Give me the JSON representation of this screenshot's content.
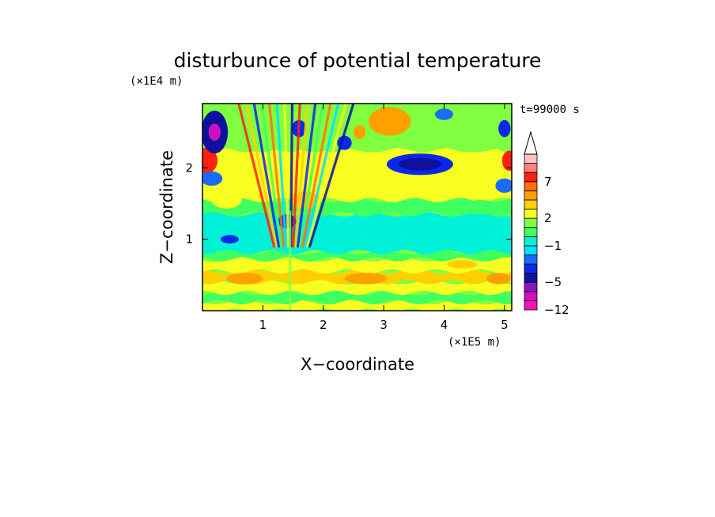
{
  "chart_data": {
    "type": "heatmap",
    "title": "disturbunce of potential temperature",
    "xlabel": "X−coordinate",
    "ylabel": "Z−coordinate",
    "x_units": "(×1E5 m)",
    "y_units": "(×1E4 m)",
    "time_label": "t=99000 s",
    "xlim": [
      0,
      5.12
    ],
    "ylim": [
      0,
      2.9
    ],
    "x_ticks": [
      "1",
      "2",
      "3",
      "4",
      "5"
    ],
    "x_tick_values": [
      1,
      2,
      3,
      4,
      5
    ],
    "y_ticks": [
      "1",
      "2"
    ],
    "y_tick_values": [
      1,
      2
    ],
    "colorbar": {
      "levels": [
        -12,
        -10,
        -7,
        -5,
        -4,
        -3,
        -2,
        -1,
        0,
        1,
        2,
        3,
        4,
        5,
        7,
        9,
        11,
        13
      ],
      "colors": [
        "#ff10b8",
        "#d010c0",
        "#8a14c0",
        "#1010a0",
        "#0a28e8",
        "#1a6bff",
        "#00e0ff",
        "#00f0d8",
        "#40ff60",
        "#80ff40",
        "#f8ff20",
        "#ffd000",
        "#ffa000",
        "#ff7010",
        "#ff2010",
        "#f88080",
        "#ffc0c0"
      ],
      "labels": [
        "7",
        "2",
        "−1",
        "−5",
        "−12"
      ],
      "label_values": [
        7,
        2,
        -1,
        -5,
        -12
      ],
      "extend": "max"
    },
    "layers": [
      {
        "name": "base",
        "value": 1.5
      },
      {
        "name": "band-surface",
        "y0": 0.0,
        "y1": 0.12,
        "value": 2.5
      },
      {
        "name": "band-low-green",
        "y0": 0.12,
        "y1": 0.25,
        "value": 0.5
      },
      {
        "name": "band-low-yellow",
        "y0": 0.25,
        "y1": 0.4,
        "value": 2.5
      },
      {
        "name": "band-low-orange",
        "y0": 0.4,
        "y1": 0.55,
        "value": 3.5
      },
      {
        "name": "band-yellow",
        "y0": 0.55,
        "y1": 0.72,
        "value": 2.5
      },
      {
        "name": "band-green",
        "y0": 0.72,
        "y1": 0.82,
        "value": 0.5
      },
      {
        "name": "band-cyan",
        "y0": 0.82,
        "y1": 1.35,
        "value": -0.5
      },
      {
        "name": "band-green-upper",
        "y0": 1.35,
        "y1": 1.55,
        "value": 0.5
      },
      {
        "name": "band-yellow-upper",
        "y0": 1.55,
        "y1": 2.25,
        "value": 2.5
      },
      {
        "name": "band-top",
        "y0": 2.25,
        "y1": 2.9,
        "value": 1.5
      }
    ],
    "blobs": [
      {
        "x": 0.05,
        "y": 2.1,
        "rx": 0.2,
        "ry": 0.18,
        "value": 8
      },
      {
        "x": 0.2,
        "y": 2.5,
        "rx": 0.22,
        "ry": 0.3,
        "value": -4.5
      },
      {
        "x": 0.2,
        "y": 2.5,
        "rx": 0.1,
        "ry": 0.12,
        "value": -8
      },
      {
        "x": 0.15,
        "y": 1.85,
        "rx": 0.18,
        "ry": 0.1,
        "value": -2.5
      },
      {
        "x": 3.6,
        "y": 2.05,
        "rx": 0.55,
        "ry": 0.15,
        "value": -3.5
      },
      {
        "x": 3.6,
        "y": 2.05,
        "rx": 0.35,
        "ry": 0.09,
        "value": -4.5
      },
      {
        "x": 3.1,
        "y": 2.65,
        "rx": 0.35,
        "ry": 0.2,
        "value": 4.5
      },
      {
        "x": 5.08,
        "y": 2.1,
        "rx": 0.12,
        "ry": 0.14,
        "value": 8
      },
      {
        "x": 5.0,
        "y": 1.75,
        "rx": 0.15,
        "ry": 0.1,
        "value": -2.5
      },
      {
        "x": 5.0,
        "y": 2.55,
        "rx": 0.1,
        "ry": 0.12,
        "value": -3.5
      },
      {
        "x": 4.0,
        "y": 2.75,
        "rx": 0.15,
        "ry": 0.08,
        "value": -2.5
      },
      {
        "x": 1.6,
        "y": 2.55,
        "rx": 0.12,
        "ry": 0.12,
        "value": -3.5
      },
      {
        "x": 2.35,
        "y": 2.35,
        "rx": 0.12,
        "ry": 0.1,
        "value": -3.5
      },
      {
        "x": 2.6,
        "y": 2.5,
        "rx": 0.1,
        "ry": 0.1,
        "value": 4.5
      },
      {
        "x": 1.4,
        "y": 1.25,
        "rx": 0.15,
        "ry": 0.1,
        "value": -3.5
      },
      {
        "x": 0.45,
        "y": 1.0,
        "rx": 0.15,
        "ry": 0.06,
        "value": -3.5
      },
      {
        "x": 4.6,
        "y": 1.45,
        "rx": 0.3,
        "ry": 0.1,
        "value": 0.5
      },
      {
        "x": 1.7,
        "y": 1.55,
        "rx": 0.25,
        "ry": 0.12,
        "value": 3.5
      },
      {
        "x": 2.7,
        "y": 0.45,
        "rx": 0.35,
        "ry": 0.08,
        "value": 4.5
      },
      {
        "x": 0.7,
        "y": 0.45,
        "rx": 0.3,
        "ry": 0.08,
        "value": 4.5
      },
      {
        "x": 4.9,
        "y": 0.45,
        "rx": 0.2,
        "ry": 0.08,
        "value": 4.5
      },
      {
        "x": 4.3,
        "y": 0.65,
        "rx": 0.25,
        "ry": 0.06,
        "value": 3.5
      },
      {
        "x": 2.1,
        "y": 1.1,
        "rx": 0.2,
        "ry": 0.06,
        "value": -0.5
      },
      {
        "x": 0.4,
        "y": 1.55,
        "rx": 0.25,
        "ry": 0.12,
        "value": 2.5
      }
    ],
    "wave_region": {
      "x0": 0.6,
      "x1": 2.5,
      "y0": 0.9,
      "y1": 2.9,
      "apex_x": 1.45,
      "apex_y": 0.0
    }
  }
}
